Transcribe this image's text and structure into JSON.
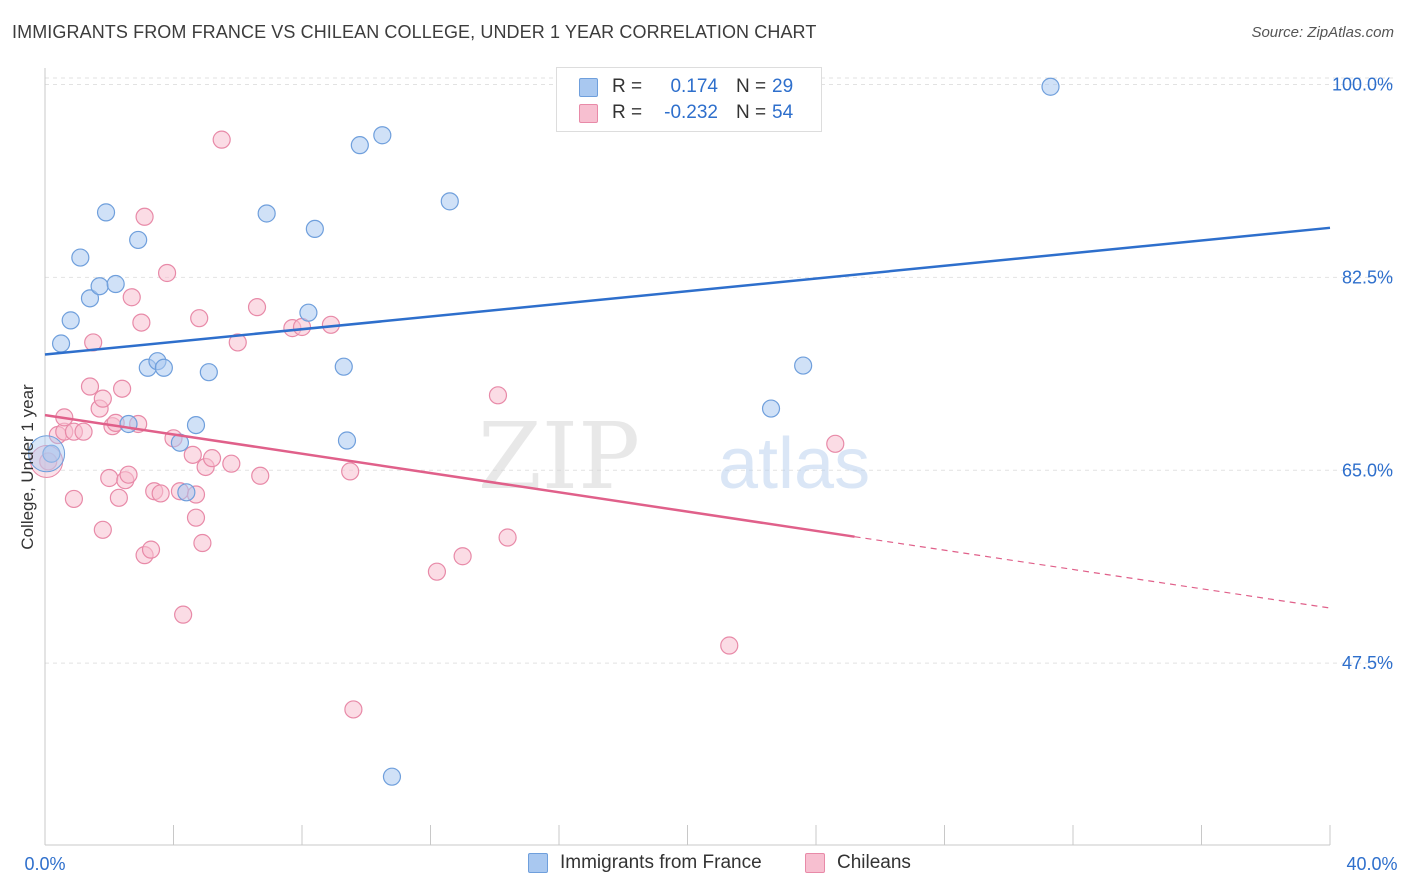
{
  "header": {
    "title": "IMMIGRANTS FROM FRANCE VS CHILEAN COLLEGE, UNDER 1 YEAR CORRELATION CHART",
    "source": "Source: ZipAtlas.com"
  },
  "legend": {
    "rows": [
      {
        "r_label": "R =",
        "r_value": "0.174",
        "n_label": "N =",
        "n_value": "29",
        "color": "#a9c8f0",
        "border": "#6f9fdc"
      },
      {
        "r_label": "R =",
        "r_value": "-0.232",
        "n_label": "N =",
        "n_value": "54",
        "color": "#f7bfd0",
        "border": "#e88aa8"
      }
    ]
  },
  "watermark": {
    "zip": "ZIP",
    "atlas": "atlas"
  },
  "colors": {
    "blue_fill": "#a9c8f0",
    "blue_stroke": "#6f9fdc",
    "blue_line": "#2e6fcc",
    "pink_fill": "#f7bfd0",
    "pink_stroke": "#e88aa8",
    "pink_line": "#e0608a",
    "tick_color": "#2e6fcc",
    "grid": "#e2e2e2"
  },
  "chart_data": {
    "type": "scatter",
    "title": "IMMIGRANTS FROM FRANCE VS CHILEAN COLLEGE, UNDER 1 YEAR CORRELATION CHART",
    "xlabel": "",
    "ylabel": "College, Under 1 year",
    "xlim": [
      0,
      40
    ],
    "ylim": [
      31.0,
      101.5
    ],
    "x_tick_labels": [
      "0.0%",
      "40.0%"
    ],
    "y_ticks": [
      47.5,
      65.0,
      82.5,
      100.0
    ],
    "y_tick_labels": [
      "47.5%",
      "65.0%",
      "82.5%",
      "100.0%"
    ],
    "grid": true,
    "legend_position": "bottom",
    "series": [
      {
        "name": "Immigrants from France",
        "trend": {
          "x0": 0,
          "y0": 75.5,
          "x1": 40,
          "y1": 87.0,
          "dashed_from": null
        },
        "points": [
          [
            0.2,
            66.5
          ],
          [
            0.5,
            76.5
          ],
          [
            0.8,
            78.6
          ],
          [
            1.1,
            84.3
          ],
          [
            1.4,
            80.6
          ],
          [
            1.7,
            81.7
          ],
          [
            1.9,
            88.4
          ],
          [
            2.2,
            81.9
          ],
          [
            2.6,
            69.2
          ],
          [
            2.9,
            85.9
          ],
          [
            3.2,
            74.3
          ],
          [
            3.5,
            74.9
          ],
          [
            3.7,
            74.3
          ],
          [
            4.2,
            67.5
          ],
          [
            4.4,
            63.0
          ],
          [
            4.7,
            69.1
          ],
          [
            5.1,
            73.9
          ],
          [
            6.9,
            88.3
          ],
          [
            8.4,
            86.9
          ],
          [
            8.2,
            79.3
          ],
          [
            9.3,
            74.4
          ],
          [
            9.4,
            67.7
          ],
          [
            9.8,
            94.5
          ],
          [
            10.5,
            95.4
          ],
          [
            10.8,
            37.2
          ],
          [
            12.6,
            89.4
          ],
          [
            22.6,
            70.6
          ],
          [
            23.6,
            74.5
          ],
          [
            31.3,
            99.8
          ]
        ]
      },
      {
        "name": "Chileans",
        "trend": {
          "x0": 0,
          "y0": 70.0,
          "x1": 40,
          "y1": 52.5,
          "dashed_from": 25.2
        },
        "points": [
          [
            0.1,
            65.8
          ],
          [
            0.4,
            68.2
          ],
          [
            0.6,
            68.5
          ],
          [
            0.6,
            69.8
          ],
          [
            0.9,
            68.5
          ],
          [
            0.9,
            62.4
          ],
          [
            1.2,
            68.5
          ],
          [
            1.4,
            72.6
          ],
          [
            1.5,
            76.6
          ],
          [
            1.7,
            70.6
          ],
          [
            1.8,
            71.5
          ],
          [
            1.8,
            59.6
          ],
          [
            2.0,
            64.3
          ],
          [
            2.1,
            69.0
          ],
          [
            2.2,
            69.3
          ],
          [
            2.3,
            62.5
          ],
          [
            2.4,
            72.4
          ],
          [
            2.5,
            64.1
          ],
          [
            2.6,
            64.6
          ],
          [
            2.7,
            80.7
          ],
          [
            2.9,
            69.2
          ],
          [
            3.0,
            78.4
          ],
          [
            3.1,
            57.3
          ],
          [
            3.1,
            88.0
          ],
          [
            3.3,
            57.8
          ],
          [
            3.4,
            63.1
          ],
          [
            3.6,
            62.9
          ],
          [
            3.8,
            82.9
          ],
          [
            4.0,
            67.9
          ],
          [
            4.2,
            63.1
          ],
          [
            4.3,
            51.9
          ],
          [
            4.6,
            66.4
          ],
          [
            4.7,
            62.8
          ],
          [
            4.7,
            60.7
          ],
          [
            4.8,
            78.8
          ],
          [
            4.9,
            58.4
          ],
          [
            5.0,
            65.3
          ],
          [
            5.2,
            66.1
          ],
          [
            5.5,
            95.0
          ],
          [
            5.8,
            65.6
          ],
          [
            6.0,
            76.6
          ],
          [
            6.6,
            79.8
          ],
          [
            6.7,
            64.5
          ],
          [
            7.7,
            77.9
          ],
          [
            8.0,
            78.0
          ],
          [
            8.9,
            78.2
          ],
          [
            9.5,
            64.9
          ],
          [
            9.6,
            43.3
          ],
          [
            12.2,
            55.8
          ],
          [
            13.0,
            57.2
          ],
          [
            14.1,
            71.8
          ],
          [
            14.4,
            58.9
          ],
          [
            21.3,
            49.1
          ],
          [
            24.6,
            67.4
          ]
        ]
      }
    ]
  }
}
